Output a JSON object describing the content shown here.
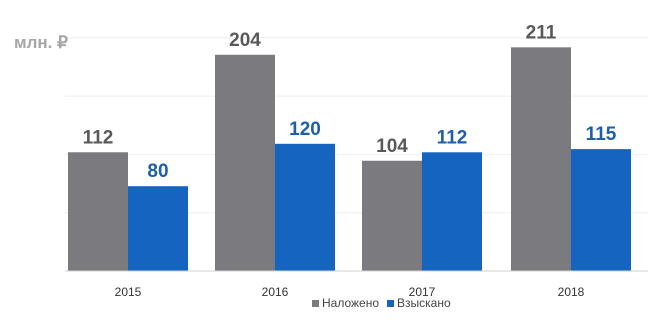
{
  "unit_label": "млн. ₽",
  "chart_data": {
    "type": "bar",
    "title": "",
    "xlabel": "",
    "ylabel": "",
    "categories": [
      "2015",
      "2016",
      "2017",
      "2018"
    ],
    "series": [
      {
        "name": "Наложено",
        "values": [
          112,
          204,
          104,
          211
        ],
        "color": "#7a7a7f",
        "label_color": "#595959"
      },
      {
        "name": "Взыскано",
        "values": [
          80,
          120,
          112,
          115
        ],
        "color": "#1565c0",
        "label_color": "#1e5fa8"
      }
    ],
    "ylim": [
      0,
      225
    ],
    "grid": true,
    "legend": "bottom"
  }
}
